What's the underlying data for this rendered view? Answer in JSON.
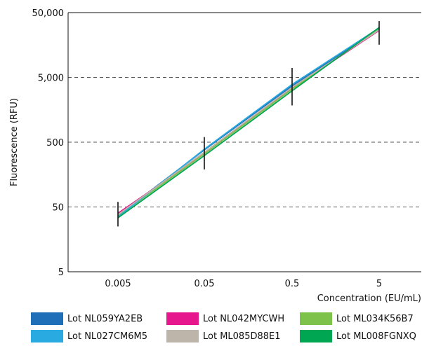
{
  "chart_data": {
    "type": "line",
    "xlabel": "Concentration (EU/mL)",
    "ylabel": "Fluorescence (RFU)",
    "x": [
      0.005,
      0.05,
      0.5,
      5
    ],
    "x_tick_labels": [
      "0.005",
      "0.05",
      "0.5",
      "5"
    ],
    "y_ticks": [
      5,
      50,
      500,
      5000,
      50000
    ],
    "y_tick_labels": [
      "5",
      "50",
      "500",
      "5,000",
      "50,000"
    ],
    "ylim": [
      5,
      50000
    ],
    "y_scale": "log",
    "grid": "horizontal dashed",
    "error_bars": {
      "low": [
        25,
        190,
        1850,
        16000
      ],
      "high": [
        60,
        600,
        7000,
        37000
      ]
    },
    "series": [
      {
        "name": "Lot NL059YA2EB",
        "color": "#1f6fb8",
        "values": [
          37,
          380,
          3700,
          28000
        ]
      },
      {
        "name": "Lot NL042MYCWH",
        "color": "#e6168c",
        "values": [
          40,
          330,
          3400,
          26500
        ]
      },
      {
        "name": "Lot ML034K56B7",
        "color": "#7cc24b",
        "values": [
          36,
          330,
          3300,
          28000
        ]
      },
      {
        "name": "Lot NL027CM6M5",
        "color": "#29abe2",
        "values": [
          35,
          390,
          3900,
          29000
        ]
      },
      {
        "name": "Lot ML085D88E1",
        "color": "#bdb5aa",
        "values": [
          38,
          350,
          3500,
          27000
        ]
      },
      {
        "name": "Lot ML008FGNXQ",
        "color": "#00a651",
        "values": [
          34,
          310,
          3100,
          29500
        ]
      }
    ]
  }
}
